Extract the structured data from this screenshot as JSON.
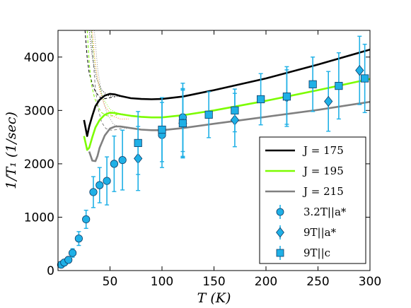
{
  "chart_data": {
    "type": "scatter",
    "xlabel": "T (K)",
    "ylabel": "1/T₁ (1/sec)",
    "xlim": [
      0,
      300
    ],
    "ylim": [
      0,
      4500
    ],
    "xticks": [
      50,
      100,
      150,
      200,
      250,
      300
    ],
    "yticks": [
      0,
      1000,
      2000,
      3000,
      4000
    ],
    "grid": false,
    "legend_position": "lower-right",
    "lines": [
      {
        "name": "J = 175",
        "color": "#000000",
        "x": [
          25,
          28,
          30,
          33,
          36,
          40,
          45,
          50,
          55,
          60,
          70,
          80,
          90,
          100,
          120,
          150,
          200,
          250,
          300
        ],
        "y": [
          2820,
          2520,
          2700,
          2900,
          3080,
          3200,
          3280,
          3310,
          3300,
          3270,
          3230,
          3215,
          3210,
          3215,
          3260,
          3380,
          3600,
          3860,
          4140
        ]
      },
      {
        "name": "J = 195",
        "color": "#7cfc00",
        "x": [
          25,
          28,
          30,
          33,
          36,
          40,
          45,
          50,
          55,
          60,
          70,
          80,
          90,
          100,
          120,
          150,
          200,
          250,
          300
        ],
        "y": [
          2520,
          2260,
          2300,
          2500,
          2680,
          2820,
          2920,
          2960,
          2950,
          2930,
          2900,
          2880,
          2870,
          2870,
          2910,
          3000,
          3180,
          3380,
          3590
        ]
      },
      {
        "name": "J = 215",
        "color": "#808080",
        "x": [
          30,
          33,
          36,
          38,
          40,
          45,
          50,
          55,
          60,
          70,
          80,
          90,
          100,
          120,
          150,
          200,
          250,
          300
        ],
        "y": [
          2230,
          2060,
          2050,
          2150,
          2300,
          2530,
          2660,
          2700,
          2700,
          2670,
          2640,
          2630,
          2630,
          2670,
          2750,
          2880,
          3010,
          3160
        ]
      }
    ],
    "dashed_lines": [
      {
        "color": "#000000",
        "x": [
          26,
          28,
          30,
          33,
          36,
          40,
          45,
          50,
          55
        ],
        "y": [
          4500,
          4000,
          3700,
          3500,
          3350,
          3250,
          3220,
          3240,
          3260
        ]
      },
      {
        "color": "#7cfc00",
        "x": [
          28,
          30,
          32,
          35,
          38,
          42,
          47,
          52,
          57
        ],
        "y": [
          4500,
          3900,
          3500,
          3250,
          3080,
          2960,
          2900,
          2900,
          2920
        ]
      },
      {
        "color": "#808080",
        "x": [
          32,
          34,
          36,
          39,
          42,
          46,
          51,
          56,
          61
        ],
        "y": [
          4500,
          3900,
          3400,
          3000,
          2780,
          2660,
          2630,
          2640,
          2660
        ]
      }
    ],
    "dotted_lines": [
      {
        "color": "#000000",
        "x": [
          30,
          33,
          37,
          42,
          48,
          55,
          62
        ],
        "y": [
          4500,
          4000,
          3600,
          3380,
          3280,
          3260,
          3260
        ]
      },
      {
        "color": "#7cfc00",
        "x": [
          32,
          35,
          39,
          44,
          50,
          57,
          64
        ],
        "y": [
          4500,
          3950,
          3500,
          3200,
          3020,
          2950,
          2930
        ]
      },
      {
        "color": "#808080",
        "x": [
          35,
          38,
          42,
          47,
          53,
          60,
          66
        ],
        "y": [
          4500,
          3800,
          3300,
          2950,
          2750,
          2680,
          2660
        ]
      },
      {
        "color": "#ff6a00",
        "x": [
          33,
          36,
          40,
          45,
          52,
          60,
          68
        ],
        "y": [
          4500,
          3850,
          3380,
          3080,
          2900,
          2840,
          2840
        ]
      }
    ],
    "series": [
      {
        "name": "3.2T||a*",
        "marker": "circle",
        "color": "#1fb0e6",
        "x": [
          3,
          6,
          10,
          14,
          20,
          27,
          34,
          40,
          47,
          54,
          62,
          100,
          120,
          120
        ],
        "y": [
          110,
          150,
          200,
          330,
          600,
          960,
          1470,
          1600,
          1680,
          2000,
          2070,
          2540,
          2760,
          2870
        ],
        "err": [
          30,
          40,
          50,
          80,
          130,
          170,
          290,
          330,
          450,
          520,
          560,
          610,
          620,
          640
        ]
      },
      {
        "name": "9T||a*",
        "marker": "diamond",
        "color": "#1fb0e6",
        "x": [
          77,
          120,
          170,
          220,
          260,
          290
        ],
        "y": [
          2100,
          2760,
          2820,
          3250,
          3170,
          3750
        ],
        "err": [
          600,
          650,
          500,
          510,
          560,
          640
        ]
      },
      {
        "name": "9T||c",
        "marker": "square",
        "color": "#1fb0e6",
        "x": [
          77,
          100,
          120,
          145,
          170,
          195,
          220,
          245,
          270,
          295
        ],
        "y": [
          2390,
          2640,
          2760,
          2920,
          3000,
          3210,
          3260,
          3490,
          3460,
          3600
        ],
        "err": [
          590,
          600,
          640,
          430,
          400,
          480,
          560,
          510,
          620,
          640
        ]
      }
    ],
    "legend": [
      {
        "label": "J = 175",
        "kind": "line",
        "color": "#000000"
      },
      {
        "label": "J = 195",
        "kind": "line",
        "color": "#7cfc00"
      },
      {
        "label": "J = 215",
        "kind": "line",
        "color": "#808080"
      },
      {
        "label": "3.2T||a*",
        "kind": "circle",
        "color": "#1fb0e6"
      },
      {
        "label": "9T||a*",
        "kind": "diamond",
        "color": "#1fb0e6"
      },
      {
        "label": "9T||c",
        "kind": "square",
        "color": "#1fb0e6"
      }
    ]
  }
}
